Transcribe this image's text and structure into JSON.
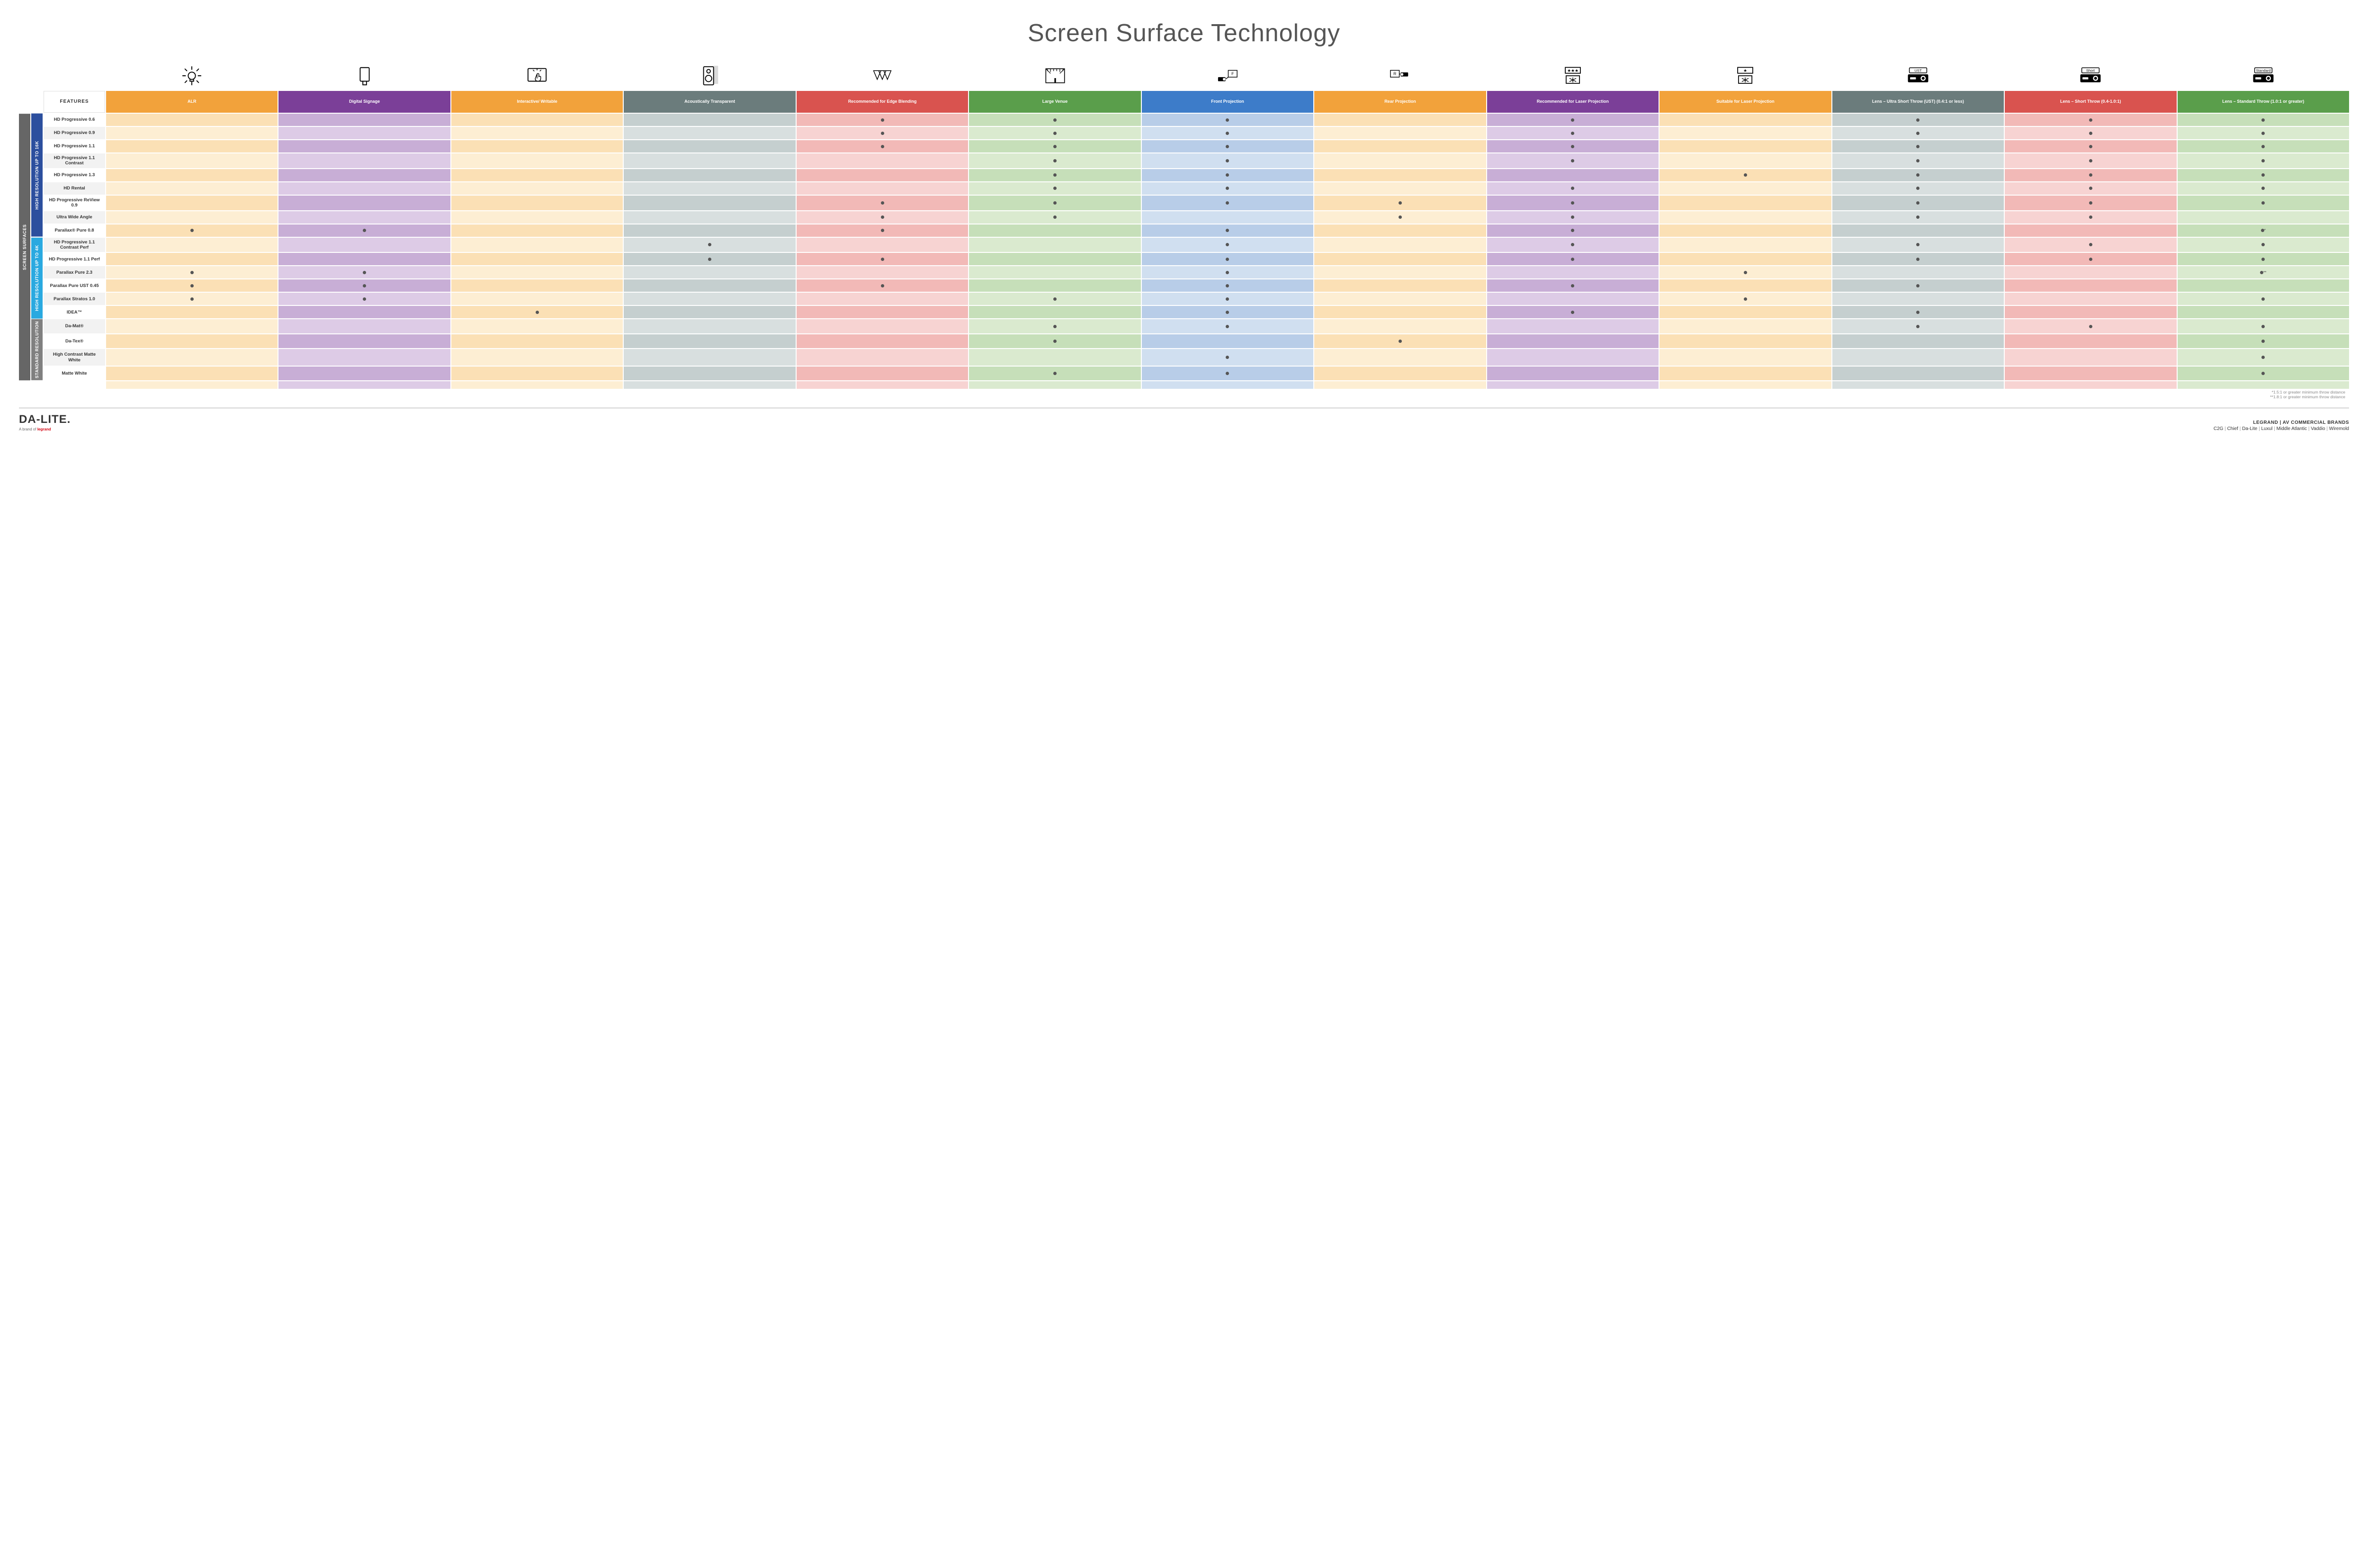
{
  "title": "Screen Surface Technology",
  "layout": {
    "side_label_col_width": "24px",
    "row_label_col_width": "130px",
    "feature_col_width": "1fr",
    "num_feature_cols": 13
  },
  "colors": {
    "side_surfaces": "#666666",
    "side_16k": "#2c4f9e",
    "side_4k": "#2aa9e0",
    "side_std": "#808080",
    "row_label_bg_a": "#ffffff",
    "row_label_bg_b": "#f2f2f2"
  },
  "side_labels": {
    "surfaces": "SCREEN SURFACES",
    "hi16k": "HIGH RESOLUTION UP TO 16K",
    "hi4k": "HIGH RESOLUTION UP TO 4K",
    "std": "STANDARD RESOLUTION"
  },
  "features_header": "FEATURES",
  "columns": [
    {
      "key": "alr",
      "label": "ALR",
      "color": "#f2a23b",
      "shade_a": "#fbe0b5",
      "shade_b": "#fdeed3",
      "icon": "bulb"
    },
    {
      "key": "signage",
      "label": "Digital Signage",
      "color": "#7b3f98",
      "shade_a": "#c8aed6",
      "shade_b": "#ddcbe6",
      "icon": "signage"
    },
    {
      "key": "write",
      "label": "Interactive/ Writable",
      "color": "#f2a23b",
      "shade_a": "#fbe0b5",
      "shade_b": "#fdeed3",
      "icon": "touch"
    },
    {
      "key": "acoust",
      "label": "Acoustically Transparent",
      "color": "#6b7c7c",
      "shade_a": "#c5cfcf",
      "shade_b": "#d8dfdf",
      "icon": "speaker"
    },
    {
      "key": "edge",
      "label": "Recommended for Edge Blending",
      "color": "#d9534f",
      "shade_a": "#f2b9b7",
      "shade_b": "#f7d3d2",
      "icon": "blend"
    },
    {
      "key": "venue",
      "label": "Large Venue",
      "color": "#5a9e4b",
      "shade_a": "#c6dfb9",
      "shade_b": "#daeacf",
      "icon": "venue"
    },
    {
      "key": "front",
      "label": "Front Projection",
      "color": "#3d7cc9",
      "shade_a": "#b8cde8",
      "shade_b": "#d0dff0",
      "icon": "front"
    },
    {
      "key": "rear",
      "label": "Rear Projection",
      "color": "#f2a23b",
      "shade_a": "#fbe0b5",
      "shade_b": "#fdeed3",
      "icon": "rear"
    },
    {
      "key": "reclsr",
      "label": "Recommended for Laser Projection",
      "color": "#7b3f98",
      "shade_a": "#c8aed6",
      "shade_b": "#ddcbe6",
      "icon": "laser3"
    },
    {
      "key": "suitlsr",
      "label": "Suitable for Laser Projection",
      "color": "#f2a23b",
      "shade_a": "#fbe0b5",
      "shade_b": "#fdeed3",
      "icon": "laser1"
    },
    {
      "key": "ust",
      "label": "Lens – Ultra Short Throw (UST) (0.4:1 or less)",
      "color": "#6b7c7c",
      "shade_a": "#c5cfcf",
      "shade_b": "#d8dfdf",
      "icon": "UST"
    },
    {
      "key": "short",
      "label": "Lens – Short Throw (0.4-1.0:1)",
      "color": "#d9534f",
      "shade_a": "#f2b9b7",
      "shade_b": "#f7d3d2",
      "icon": "Short"
    },
    {
      "key": "stdthrow",
      "label": "Lens – Standard Throw (1.0:1 or greater)",
      "color": "#5a9e4b",
      "shade_a": "#c6dfb9",
      "shade_b": "#daeacf",
      "icon": "Standard"
    }
  ],
  "groups": [
    {
      "key": "hi16k",
      "side_color": "#2c4f9e",
      "rows": [
        {
          "label": "HD Progressive 0.6",
          "dots": {
            "edge": "·",
            "venue": "·",
            "front": "·",
            "reclsr": "·",
            "ust": "·",
            "short": "·",
            "stdthrow": "·"
          }
        },
        {
          "label": "HD Progressive 0.9",
          "dots": {
            "edge": "·",
            "venue": "·",
            "front": "·",
            "reclsr": "·",
            "ust": "·",
            "short": "·",
            "stdthrow": "·"
          }
        },
        {
          "label": "HD Progressive 1.1",
          "dots": {
            "edge": "·",
            "venue": "·",
            "front": "·",
            "reclsr": "·",
            "ust": "·",
            "short": "·",
            "stdthrow": "·"
          }
        },
        {
          "label": "HD Progressive 1.1 Contrast",
          "dots": {
            "venue": "·",
            "front": "·",
            "reclsr": "·",
            "ust": "·",
            "short": "·",
            "stdthrow": "·"
          }
        },
        {
          "label": "HD Progressive 1.3",
          "dots": {
            "venue": "·",
            "front": "·",
            "suitlsr": "·",
            "ust": "·",
            "short": "·",
            "stdthrow": "·"
          }
        },
        {
          "label": "HD Rental",
          "dots": {
            "venue": "·",
            "front": "·",
            "reclsr": "·",
            "ust": "·",
            "short": "·",
            "stdthrow": "·"
          }
        },
        {
          "label": "HD Progressive ReView 0.9",
          "dots": {
            "edge": "·",
            "venue": "·",
            "front": "·",
            "rear": "·",
            "reclsr": "·",
            "ust": "·",
            "short": "·",
            "stdthrow": "·"
          }
        },
        {
          "label": "Ultra Wide Angle",
          "dots": {
            "edge": "·",
            "venue": "·",
            "rear": "·",
            "reclsr": "·",
            "ust": "·",
            "short": "·"
          }
        },
        {
          "label": "Parallax® Pure 0.8",
          "dots": {
            "alr": "·",
            "signage": "·",
            "edge": "·",
            "front": "·",
            "reclsr": "·",
            "stdthrow": "·*"
          }
        }
      ]
    },
    {
      "key": "hi4k",
      "side_color": "#2aa9e0",
      "rows": [
        {
          "label": "HD Progressive 1.1 Contrast Perf",
          "dots": {
            "acoust": "·",
            "front": "·",
            "reclsr": "·",
            "ust": "·",
            "short": "·",
            "stdthrow": "·"
          }
        },
        {
          "label": "HD Progressive 1.1 Perf",
          "dots": {
            "acoust": "·",
            "edge": "·",
            "front": "·",
            "reclsr": "·",
            "ust": "·",
            "short": "·",
            "stdthrow": "·"
          }
        },
        {
          "label": "Parallax Pure 2.3",
          "dots": {
            "alr": "·",
            "signage": "·",
            "front": "·",
            "suitlsr": "·",
            "stdthrow": "·**"
          }
        },
        {
          "label": "Parallax Pure UST 0.45",
          "dots": {
            "alr": "·",
            "signage": "·",
            "edge": "·",
            "front": "·",
            "reclsr": "·",
            "ust": "·"
          }
        },
        {
          "label": "Parallax Stratos 1.0",
          "dots": {
            "alr": "·",
            "signage": "·",
            "venue": "·",
            "front": "·",
            "suitlsr": "·",
            "stdthrow": "·"
          }
        },
        {
          "label": "IDEA™",
          "dots": {
            "write": "·",
            "front": "·",
            "reclsr": "·",
            "ust": "·"
          }
        }
      ]
    },
    {
      "key": "std",
      "side_color": "#808080",
      "rows": [
        {
          "label": "Da-Mat®",
          "dots": {
            "venue": "·",
            "front": "·",
            "ust": "·",
            "short": "·",
            "stdthrow": "·"
          }
        },
        {
          "label": "Da-Tex®",
          "dots": {
            "venue": "·",
            "rear": "·",
            "stdthrow": "·"
          }
        },
        {
          "label": "High Contrast Matte White",
          "dots": {
            "front": "·",
            "stdthrow": "·"
          }
        },
        {
          "label": "Matte White",
          "dots": {
            "venue": "·",
            "front": "·",
            "stdthrow": "·"
          }
        }
      ]
    }
  ],
  "footnotes": [
    "*1.5:1 or greater minimum throw distance",
    "**1.8:1 or greater minimum throw distance"
  ],
  "footer": {
    "logo": "DA-LITE.",
    "logo_sub_prefix": "A brand of ",
    "logo_sub_brand": "legrand",
    "brands_title": "LEGRAND | AV COMMERCIAL BRANDS",
    "brands": [
      "C2G",
      "Chief",
      "Da-Lite",
      "Luxul",
      "Middle Atlantic",
      "Vaddio",
      "Wiremold"
    ]
  }
}
